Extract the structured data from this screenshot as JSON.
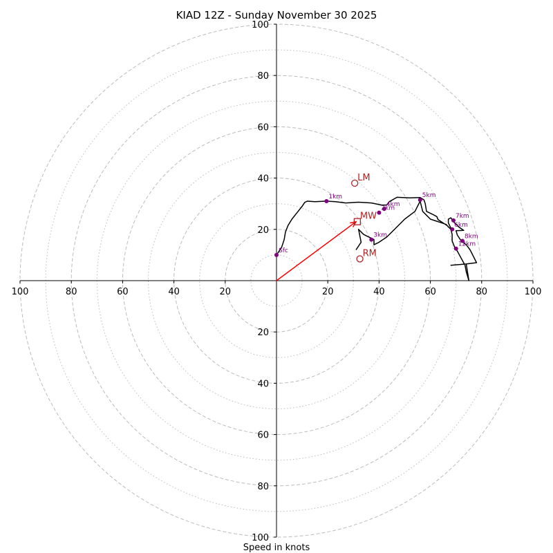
{
  "chart_data": {
    "type": "hodograph",
    "title": "KIAD 12Z - Sunday November 30 2025",
    "xlabel": "Speed in knots",
    "range": [
      -100,
      100
    ],
    "tick_values": [
      20,
      40,
      60,
      80,
      100
    ],
    "tick_labels": [
      "20",
      "40",
      "60",
      "80",
      "100"
    ],
    "ring_major": [
      20,
      40,
      60,
      80,
      100
    ],
    "ring_minor": [
      10,
      30,
      50,
      70,
      90
    ],
    "colors": {
      "trace": "#000000",
      "height_marker": "#800080",
      "motion": "#b22222",
      "shear_vector": "#ff0000",
      "ring": "#bbbbbb"
    },
    "trace": [
      [
        0,
        10
      ],
      [
        2,
        13
      ],
      [
        3,
        16
      ],
      [
        3.5,
        19
      ],
      [
        4.5,
        21.5
      ],
      [
        6,
        24
      ],
      [
        8,
        26.5
      ],
      [
        10,
        29
      ],
      [
        11,
        30.5
      ],
      [
        12,
        31
      ],
      [
        15,
        30.8
      ],
      [
        19.5,
        31
      ],
      [
        23,
        30.8
      ],
      [
        27,
        30.3
      ],
      [
        32,
        30.6
      ],
      [
        37,
        30.3
      ],
      [
        41,
        29.5
      ],
      [
        43,
        29.5
      ],
      [
        44,
        30.8
      ],
      [
        47,
        32.5
      ],
      [
        52,
        32.3
      ],
      [
        56,
        32.4
      ],
      [
        57.5,
        31.5
      ],
      [
        58,
        30
      ],
      [
        58.5,
        27
      ],
      [
        61,
        25.8
      ],
      [
        62.5,
        25
      ],
      [
        63,
        23.8
      ],
      [
        66.5,
        21.5
      ],
      [
        68,
        20
      ],
      [
        68.5,
        19.5
      ],
      [
        67,
        22.5
      ],
      [
        67,
        24
      ],
      [
        68,
        24.5
      ],
      [
        69,
        23
      ],
      [
        71,
        21
      ],
      [
        73,
        19.6
      ],
      [
        70,
        19.5
      ],
      [
        70.5,
        17.8
      ],
      [
        72,
        15.5
      ],
      [
        74,
        14
      ],
      [
        75.5,
        12
      ],
      [
        78,
        7
      ],
      [
        74,
        6.5
      ],
      [
        68,
        6
      ],
      [
        74,
        6.5
      ],
      [
        75,
        0
      ],
      [
        74,
        3.5
      ],
      [
        73.5,
        6
      ],
      [
        70.5,
        11.5
      ],
      [
        69.5,
        13
      ],
      [
        68.5,
        15.5
      ],
      [
        68.5,
        18
      ],
      [
        68,
        20
      ],
      [
        66,
        22
      ],
      [
        60,
        24
      ],
      [
        57,
        27
      ],
      [
        56,
        31
      ],
      [
        54,
        27
      ],
      [
        50,
        24
      ],
      [
        45,
        19
      ],
      [
        43,
        17
      ],
      [
        40,
        15
      ],
      [
        38,
        14
      ],
      [
        38,
        16
      ],
      [
        34,
        18
      ],
      [
        32,
        20
      ],
      [
        33,
        15
      ],
      [
        31,
        12
      ]
    ],
    "height_markers": [
      {
        "label": "Sfc",
        "u": 0,
        "v": 10
      },
      {
        "label": "1km",
        "u": 19.5,
        "v": 31
      },
      {
        "label": "2km",
        "u": 40,
        "v": 26.5
      },
      {
        "label": "3km",
        "u": 37,
        "v": 16
      },
      {
        "label": "4km",
        "u": 42,
        "v": 28
      },
      {
        "label": "5km",
        "u": 56,
        "v": 31.5
      },
      {
        "label": "6km",
        "u": 68.5,
        "v": 20
      },
      {
        "label": "7km",
        "u": 69,
        "v": 23.5
      },
      {
        "label": "8km",
        "u": 72.5,
        "v": 15.5
      },
      {
        "label": "12km",
        "u": 70,
        "v": 12.5
      }
    ],
    "storm_motion": [
      {
        "label": "LM",
        "u": 30.5,
        "v": 38,
        "marker": "circle"
      },
      {
        "label": "MW",
        "u": 31.5,
        "v": 23,
        "marker": "square"
      },
      {
        "label": "RM",
        "u": 32.5,
        "v": 8.5,
        "marker": "circle"
      }
    ],
    "shear_vector": {
      "from": [
        0,
        0
      ],
      "to": [
        31,
        23
      ]
    }
  }
}
